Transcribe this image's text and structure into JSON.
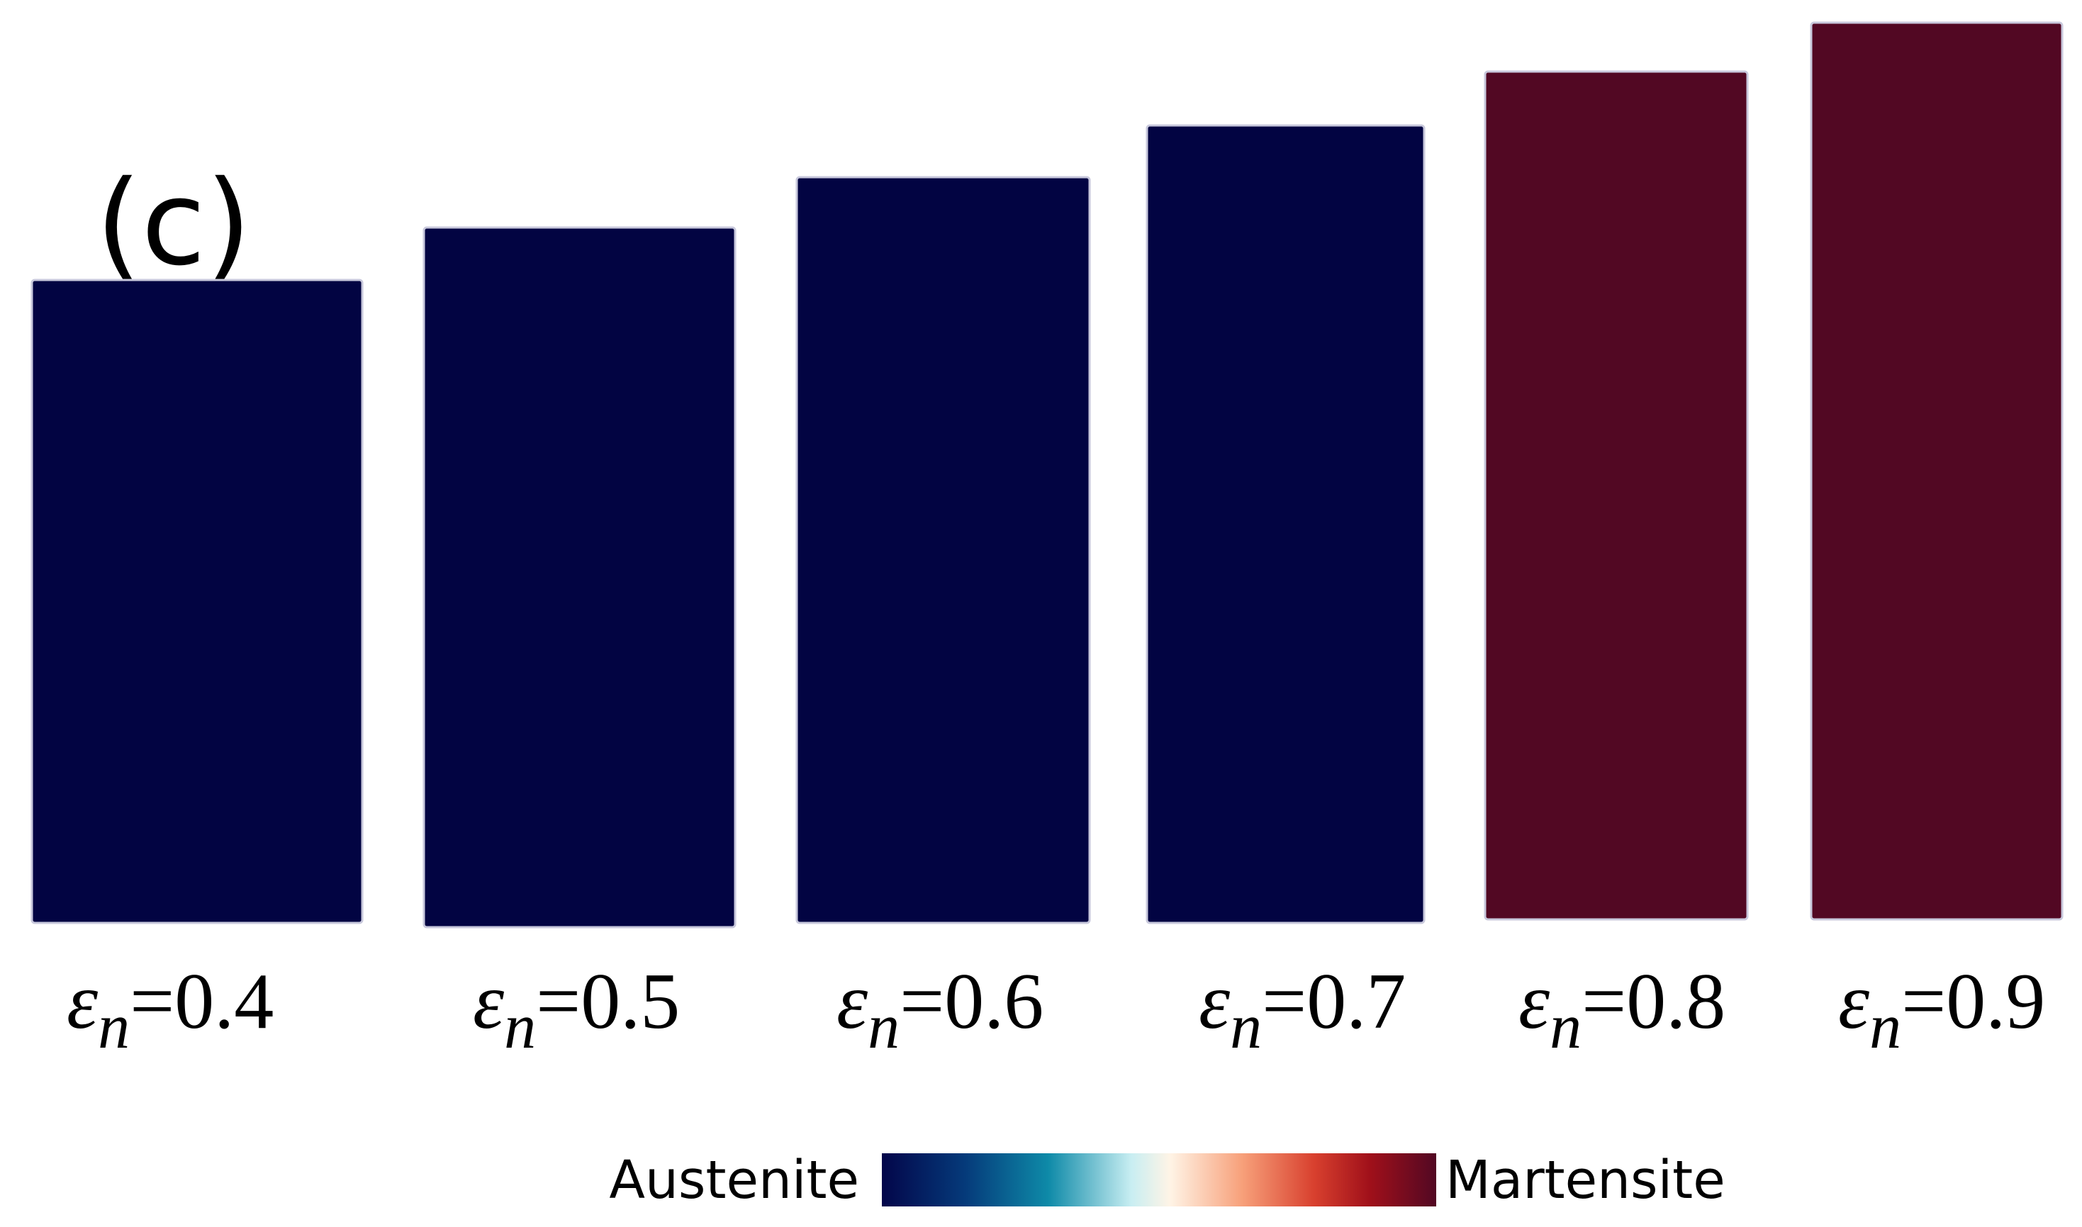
{
  "panel_label": "(c)",
  "symbol": "ε",
  "subscript": "n",
  "specimens": [
    {
      "label": "=0.4",
      "color": "#020442"
    },
    {
      "label": "=0.5",
      "color": "#020442"
    },
    {
      "label": "=0.6",
      "color": "#020442"
    },
    {
      "label": "=0.7",
      "color": "#020442"
    },
    {
      "label": "=0.8",
      "color": "#520823"
    },
    {
      "label": "=0.9",
      "color": "#520823"
    }
  ],
  "colorbar": {
    "left_label": "Austenite",
    "right_label": "Martensite"
  }
}
